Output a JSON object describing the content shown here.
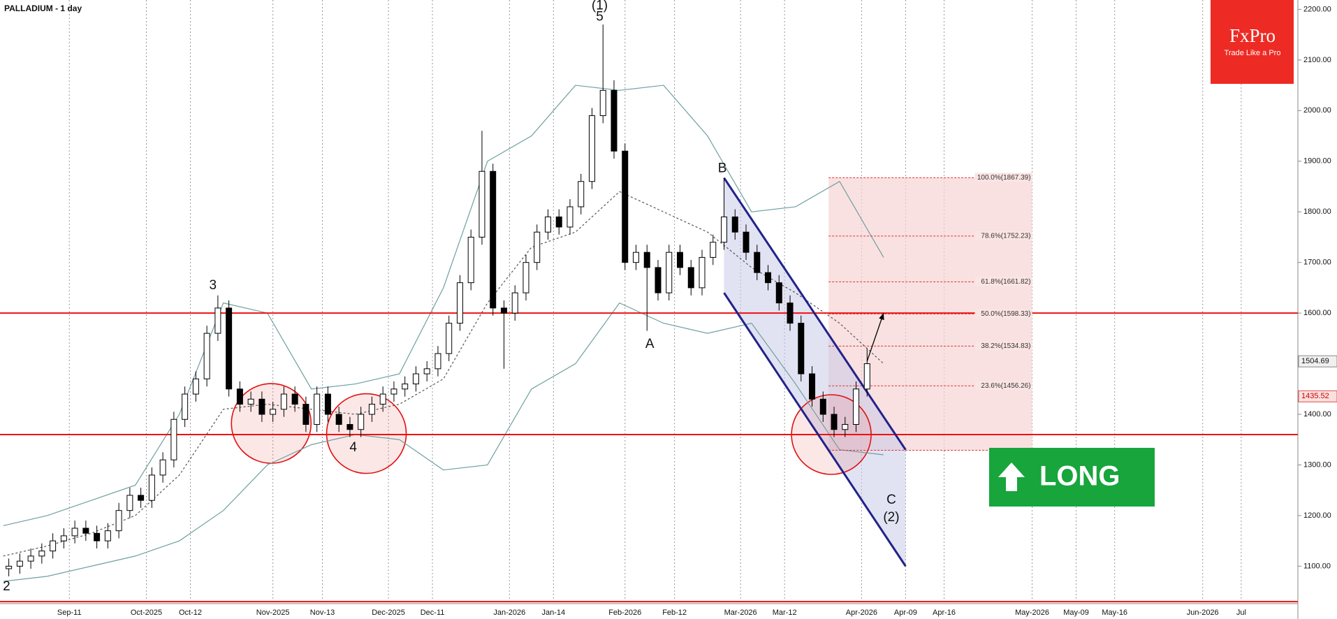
{
  "chart_data": {
    "type": "candlestick",
    "title": "PALLADIUM - 1 day",
    "logo": {
      "name": "FxPro",
      "tagline": "Trade Like a Pro"
    },
    "badge": "LONG",
    "xlim": [
      -0.6,
      235.3
    ],
    "ylim": [
      1026,
      2218.5
    ],
    "grid": true,
    "xticks": [
      {
        "value": 12,
        "label": "Sep-11"
      },
      {
        "value": 26,
        "label": "Oct-2025"
      },
      {
        "value": 34,
        "label": "Oct-12"
      },
      {
        "value": 49,
        "label": "Nov-2025"
      },
      {
        "value": 58,
        "label": "Nov-13"
      },
      {
        "value": 70,
        "label": "Dec-2025"
      },
      {
        "value": 78,
        "label": "Dec-11"
      },
      {
        "value": 92,
        "label": "Jan-2026"
      },
      {
        "value": 100,
        "label": "Jan-14"
      },
      {
        "value": 113,
        "label": "Feb-2026"
      },
      {
        "value": 122,
        "label": "Feb-12"
      },
      {
        "value": 134,
        "label": "Mar-2026"
      },
      {
        "value": 142,
        "label": "Mar-12"
      },
      {
        "value": 156,
        "label": "Apr-2026"
      },
      {
        "value": 164,
        "label": "Apr-09"
      },
      {
        "value": 171,
        "label": "Apr-16"
      },
      {
        "value": 187,
        "label": "May-2026"
      },
      {
        "value": 195,
        "label": "May-09"
      },
      {
        "value": 202,
        "label": "May-16"
      },
      {
        "value": 218,
        "label": "Jun-2026"
      },
      {
        "value": 225,
        "label": "Jul"
      }
    ],
    "yticks": [
      {
        "value": 2200,
        "label": "2200.00"
      },
      {
        "value": 2100,
        "label": "2100.00"
      },
      {
        "value": 2000,
        "label": "2000.00"
      },
      {
        "value": 1900,
        "label": "1900.00"
      },
      {
        "value": 1800,
        "label": "1800.00"
      },
      {
        "value": 1700,
        "label": "1700.00"
      },
      {
        "value": 1600,
        "label": "1600.00"
      },
      {
        "value": 1500,
        "label": "1500.00"
      },
      {
        "value": 1400,
        "label": "1400.00"
      },
      {
        "value": 1300,
        "label": "1300.00"
      },
      {
        "value": 1200,
        "label": "1200.00"
      },
      {
        "value": 1100,
        "label": "1100.00"
      }
    ],
    "x": [
      1,
      3,
      5,
      7,
      9,
      11,
      13,
      15,
      17,
      19,
      21,
      23,
      25,
      27,
      29,
      31,
      33,
      35,
      37,
      39,
      41,
      43,
      45,
      47,
      49,
      51,
      53,
      55,
      57,
      59,
      61,
      63,
      65,
      67,
      69,
      71,
      73,
      75,
      77,
      79,
      81,
      83,
      85,
      87,
      89,
      91,
      93,
      95,
      97,
      99,
      101,
      103,
      105,
      107,
      109,
      111,
      113,
      115,
      117,
      119,
      121,
      123,
      125,
      127,
      129,
      131,
      133,
      135,
      137,
      139,
      141,
      143,
      145,
      147,
      149,
      151,
      153,
      155,
      157
    ],
    "open": [
      1095,
      1100,
      1110,
      1120,
      1130,
      1150,
      1160,
      1175,
      1165,
      1150,
      1170,
      1210,
      1240,
      1230,
      1280,
      1310,
      1390,
      1440,
      1470,
      1560,
      1610,
      1450,
      1420,
      1430,
      1400,
      1410,
      1440,
      1420,
      1380,
      1440,
      1400,
      1380,
      1370,
      1400,
      1420,
      1440,
      1450,
      1460,
      1480,
      1490,
      1520,
      1580,
      1660,
      1750,
      1880,
      1610,
      1600,
      1640,
      1700,
      1760,
      1790,
      1770,
      1810,
      1860,
      1990,
      2040,
      1920,
      1700,
      1720,
      1690,
      1640,
      1720,
      1690,
      1650,
      1710,
      1740,
      1790,
      1760,
      1720,
      1680,
      1660,
      1620,
      1580,
      1480,
      1430,
      1400,
      1370,
      1380,
      1450
    ],
    "high": [
      1115,
      1125,
      1135,
      1145,
      1165,
      1175,
      1190,
      1190,
      1180,
      1185,
      1225,
      1255,
      1255,
      1295,
      1325,
      1405,
      1455,
      1485,
      1575,
      1635,
      1625,
      1465,
      1445,
      1445,
      1425,
      1455,
      1455,
      1435,
      1455,
      1455,
      1415,
      1395,
      1415,
      1435,
      1455,
      1465,
      1475,
      1495,
      1505,
      1535,
      1595,
      1675,
      1765,
      1960,
      1895,
      1625,
      1655,
      1715,
      1775,
      1805,
      1805,
      1825,
      1875,
      2005,
      2170,
      2060,
      1935,
      1735,
      1735,
      1705,
      1735,
      1735,
      1705,
      1725,
      1755,
      1867,
      1805,
      1775,
      1735,
      1695,
      1675,
      1635,
      1595,
      1495,
      1445,
      1415,
      1395,
      1465,
      1530
    ],
    "low": [
      1080,
      1085,
      1095,
      1105,
      1115,
      1135,
      1145,
      1150,
      1135,
      1135,
      1155,
      1195,
      1215,
      1215,
      1265,
      1295,
      1375,
      1425,
      1455,
      1545,
      1435,
      1405,
      1405,
      1385,
      1385,
      1395,
      1405,
      1365,
      1365,
      1385,
      1365,
      1355,
      1355,
      1385,
      1405,
      1425,
      1435,
      1445,
      1465,
      1475,
      1505,
      1565,
      1645,
      1735,
      1595,
      1490,
      1585,
      1625,
      1685,
      1745,
      1755,
      1755,
      1795,
      1845,
      1975,
      1905,
      1685,
      1685,
      1565,
      1625,
      1625,
      1675,
      1635,
      1635,
      1695,
      1725,
      1745,
      1705,
      1665,
      1645,
      1605,
      1565,
      1465,
      1415,
      1385,
      1355,
      1355,
      1365,
      1435
    ],
    "close": [
      1100,
      1110,
      1120,
      1130,
      1150,
      1160,
      1175,
      1165,
      1150,
      1170,
      1210,
      1240,
      1230,
      1280,
      1310,
      1390,
      1440,
      1470,
      1560,
      1610,
      1450,
      1420,
      1430,
      1400,
      1410,
      1440,
      1420,
      1380,
      1440,
      1400,
      1380,
      1370,
      1400,
      1420,
      1440,
      1450,
      1460,
      1480,
      1490,
      1520,
      1580,
      1660,
      1750,
      1880,
      1610,
      1600,
      1640,
      1700,
      1760,
      1790,
      1770,
      1810,
      1860,
      1990,
      2040,
      1920,
      1700,
      1720,
      1690,
      1640,
      1720,
      1690,
      1650,
      1710,
      1740,
      1790,
      1760,
      1720,
      1680,
      1660,
      1620,
      1580,
      1480,
      1430,
      1400,
      1370,
      1380,
      1450,
      1500
    ],
    "bands_x": [
      0,
      8,
      16,
      24,
      32,
      40,
      48,
      56,
      64,
      72,
      80,
      88,
      96,
      104,
      112,
      120,
      128,
      136,
      144,
      152,
      160
    ],
    "bands": [
      {
        "color": "#6f9fa0",
        "values": [
          1180,
          1200,
          1230,
          1260,
          1400,
          1620,
          1600,
          1450,
          1460,
          1480,
          1650,
          1900,
          1950,
          2050,
          2040,
          2050,
          1950,
          1800,
          1810,
          1860,
          1710
        ]
      },
      {
        "color": "#555555",
        "values": [
          1120,
          1140,
          1165,
          1200,
          1280,
          1410,
          1420,
          1410,
          1400,
          1420,
          1470,
          1620,
          1730,
          1760,
          1840,
          1800,
          1760,
          1690,
          1640,
          1580,
          1500
        ]
      },
      {
        "color": "#6f9fa0",
        "values": [
          1070,
          1080,
          1100,
          1120,
          1150,
          1210,
          1300,
          1340,
          1360,
          1350,
          1290,
          1300,
          1450,
          1500,
          1620,
          1580,
          1560,
          1580,
          1460,
          1330,
          1320
        ]
      }
    ],
    "levels": [
      1600,
      1360,
      1030
    ],
    "level_color": "#ee1111",
    "channel": {
      "color": "#22228a",
      "x": [
        131,
        164
      ],
      "upper": [
        1867,
        1330
      ],
      "lower": [
        1640,
        1100
      ]
    },
    "fib_x": [
      150,
      187
    ],
    "fib": [
      {
        "value": 1867.39,
        "label": "100.0%(1867.39)"
      },
      {
        "value": 1752.23,
        "label": "78.6%(1752.23)"
      },
      {
        "value": 1661.82,
        "label": "61.8%(1661.82)"
      },
      {
        "value": 1598.33,
        "label": "50.0%(1598.33)"
      },
      {
        "value": 1534.83,
        "label": "38.2%(1534.83)"
      },
      {
        "value": 1456.26,
        "label": "23.6%(1456.26)"
      },
      1329
    ],
    "arrow": {
      "x": [
        157,
        160
      ],
      "y": [
        1505,
        1600
      ]
    },
    "price_tags": [
      1504.69,
      1435.52
    ],
    "annotations": [
      "(1)",
      "5",
      "3",
      "4",
      "2",
      "A",
      "B",
      "C",
      "(2)"
    ]
  }
}
